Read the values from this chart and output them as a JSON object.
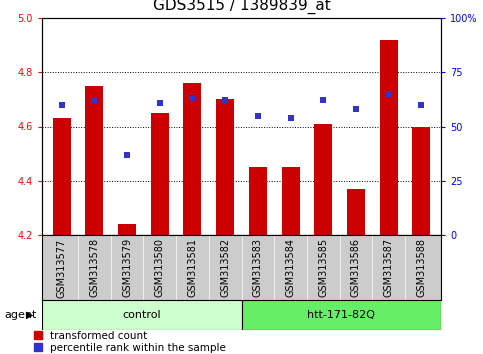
{
  "title": "GDS3515 / 1389839_at",
  "samples": [
    "GSM313577",
    "GSM313578",
    "GSM313579",
    "GSM313580",
    "GSM313581",
    "GSM313582",
    "GSM313583",
    "GSM313584",
    "GSM313585",
    "GSM313586",
    "GSM313587",
    "GSM313588"
  ],
  "red_values": [
    4.63,
    4.75,
    4.24,
    4.65,
    4.76,
    4.7,
    4.45,
    4.45,
    4.61,
    4.37,
    4.92,
    4.6
  ],
  "blue_values": [
    60,
    62,
    37,
    61,
    63,
    62,
    55,
    54,
    62,
    58,
    65,
    60
  ],
  "ylim_left": [
    4.2,
    5.0
  ],
  "ylim_right": [
    0,
    100
  ],
  "yticks_left": [
    4.2,
    4.4,
    4.6,
    4.8,
    5.0
  ],
  "yticks_right": [
    0,
    25,
    50,
    75,
    100
  ],
  "ytick_labels_right": [
    "0",
    "25",
    "50",
    "75",
    "100%"
  ],
  "bar_color": "#cc0000",
  "dot_color": "#3333cc",
  "bar_bottom": 4.2,
  "control_label": "control",
  "treatment_label": "htt-171-82Q",
  "agent_label": "agent",
  "legend_red": "transformed count",
  "legend_blue": "percentile rank within the sample",
  "control_color": "#ccffcc",
  "treatment_color": "#66ee66",
  "xtick_bg_color": "#cccccc",
  "bar_width": 0.55,
  "title_fontsize": 11,
  "tick_fontsize": 7,
  "label_fontsize": 8,
  "legend_fontsize": 7.5
}
